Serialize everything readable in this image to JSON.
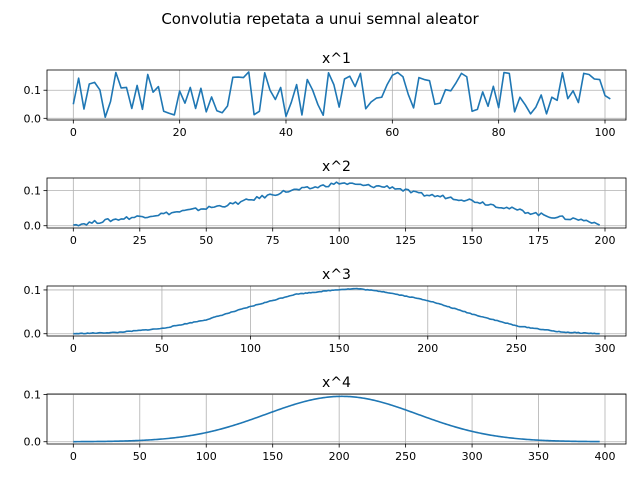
{
  "figure": {
    "suptitle": "Convolutia repetata a unui semnal aleator",
    "line_color": "#1f77b4",
    "grid_color": "#b0b0b0"
  },
  "chart_data": [
    {
      "type": "line",
      "title": "x^1",
      "grid": true,
      "xlim": [
        -4.95,
        103.95
      ],
      "ylim": [
        -0.006,
        0.172
      ],
      "xticks": [
        0,
        20,
        40,
        60,
        80,
        100
      ],
      "yticks": [
        0.0,
        0.1
      ],
      "ytick_labels": [
        "0.0",
        "0.1"
      ],
      "x_start": 0,
      "values": [
        0.05,
        0.143,
        0.033,
        0.122,
        0.128,
        0.101,
        0.004,
        0.06,
        0.163,
        0.108,
        0.11,
        0.035,
        0.117,
        0.032,
        0.156,
        0.093,
        0.113,
        0.025,
        0.018,
        0.012,
        0.097,
        0.054,
        0.11,
        0.035,
        0.107,
        0.023,
        0.076,
        0.027,
        0.02,
        0.044,
        0.146,
        0.147,
        0.145,
        0.165,
        0.013,
        0.025,
        0.162,
        0.1,
        0.067,
        0.11,
        0.007,
        0.057,
        0.12,
        0.012,
        0.138,
        0.101,
        0.049,
        0.011,
        0.162,
        0.12,
        0.04,
        0.14,
        0.15,
        0.113,
        0.16,
        0.034,
        0.058,
        0.072,
        0.075,
        0.119,
        0.153,
        0.163,
        0.148,
        0.085,
        0.037,
        0.145,
        0.138,
        0.134,
        0.05,
        0.054,
        0.102,
        0.098,
        0.127,
        0.16,
        0.148,
        0.025,
        0.032,
        0.094,
        0.043,
        0.114,
        0.038,
        0.163,
        0.16,
        0.023,
        0.075,
        0.048,
        0.016,
        0.04,
        0.083,
        0.016,
        0.075,
        0.064,
        0.162,
        0.07,
        0.098,
        0.056,
        0.16,
        0.156,
        0.14,
        0.138,
        0.081,
        0.069
      ]
    },
    {
      "type": "line",
      "title": "x^2",
      "grid": true,
      "xlim": [
        -9.9,
        207.9
      ],
      "ylim": [
        -0.0065,
        0.136
      ],
      "xticks": [
        0,
        25,
        50,
        75,
        100,
        125,
        150,
        175,
        200
      ],
      "yticks": [
        0.0,
        0.1
      ],
      "ytick_labels": [
        "0.0",
        "0.1"
      ],
      "x_start": 0,
      "keypoints": [
        [
          0,
          0.002
        ],
        [
          4,
          0.006
        ],
        [
          10,
          0.012
        ],
        [
          20,
          0.022
        ],
        [
          30,
          0.03
        ],
        [
          40,
          0.04
        ],
        [
          50,
          0.05
        ],
        [
          60,
          0.062
        ],
        [
          70,
          0.08
        ],
        [
          80,
          0.098
        ],
        [
          90,
          0.108
        ],
        [
          100,
          0.122
        ],
        [
          110,
          0.114
        ],
        [
          120,
          0.11
        ],
        [
          125,
          0.1
        ],
        [
          130,
          0.09
        ],
        [
          140,
          0.082
        ],
        [
          150,
          0.072
        ],
        [
          160,
          0.056
        ],
        [
          170,
          0.04
        ],
        [
          180,
          0.026
        ],
        [
          190,
          0.018
        ],
        [
          195,
          0.012
        ],
        [
          198,
          0.002
        ]
      ],
      "noise_amplitude": 0.005
    },
    {
      "type": "line",
      "title": "x^3",
      "grid": true,
      "xlim": [
        -14.85,
        311.85
      ],
      "ylim": [
        -0.0052,
        0.109
      ],
      "xticks": [
        0,
        50,
        100,
        150,
        200,
        250,
        300
      ],
      "yticks": [
        0.0,
        0.1
      ],
      "ytick_labels": [
        "0.0",
        "0.1"
      ],
      "x_start": 0,
      "keypoints": [
        [
          0,
          0.0
        ],
        [
          25,
          0.003
        ],
        [
          50,
          0.012
        ],
        [
          75,
          0.032
        ],
        [
          100,
          0.062
        ],
        [
          125,
          0.09
        ],
        [
          150,
          0.101
        ],
        [
          160,
          0.103
        ],
        [
          175,
          0.096
        ],
        [
          200,
          0.076
        ],
        [
          225,
          0.045
        ],
        [
          250,
          0.018
        ],
        [
          275,
          0.004
        ],
        [
          297,
          0.0
        ]
      ],
      "noise_amplitude": 0.0008
    },
    {
      "type": "line",
      "title": "x^4",
      "grid": true,
      "xlim": [
        -19.8,
        415.8
      ],
      "ylim": [
        -0.0048,
        0.101
      ],
      "xticks": [
        0,
        50,
        100,
        150,
        200,
        250,
        300,
        350,
        400
      ],
      "yticks": [
        0.0,
        0.1
      ],
      "ytick_labels": [
        "0.0",
        "0.1"
      ],
      "x_start": 0,
      "peak_x": 202,
      "peak_y": 0.096,
      "sigma": 57,
      "x_end": 396
    }
  ]
}
